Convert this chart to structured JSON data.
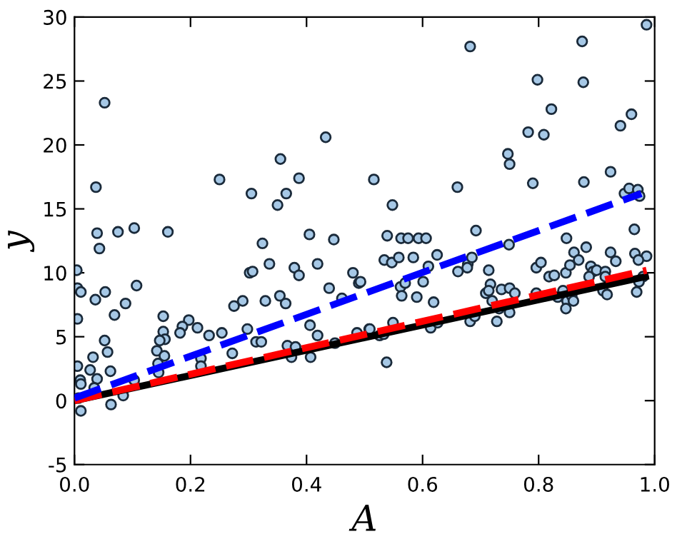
{
  "chart_data": {
    "type": "scatter",
    "xlabel": "A",
    "ylabel": "y",
    "xlim": [
      0,
      1
    ],
    "ylim": [
      -5,
      30
    ],
    "xticks": [
      {
        "value": 0,
        "label": "0.0"
      },
      {
        "value": 0.2,
        "label": "0.2"
      },
      {
        "value": 0.4,
        "label": "0.4"
      },
      {
        "value": 0.6,
        "label": "0.6"
      },
      {
        "value": 0.8,
        "label": "0.8"
      },
      {
        "value": 1,
        "label": "1.0"
      }
    ],
    "yticks": [
      -5,
      0,
      5,
      10,
      15,
      20,
      25,
      30
    ],
    "grid": false,
    "legend": false,
    "series": [
      {
        "color": "#a6c8e6",
        "marker": "circle",
        "x": [
          0.052,
          0.037,
          0.039,
          0.075,
          0.103,
          0.161,
          0.25,
          0.305,
          0.35,
          0.355,
          0.365,
          0.387,
          0.405,
          0.433,
          0.447,
          0.324,
          0.516,
          0.986,
          0.682,
          0.875,
          0.798,
          0.877,
          0.822,
          0.96,
          0.941,
          0.782,
          0.809,
          0.747,
          0.75,
          0.548,
          0.66,
          0.79,
          0.878,
          0.924,
          0.948,
          0.956,
          0.971,
          0.974,
          0.965,
          0.539,
          0.563,
          0.575,
          0.593,
          0.606,
          0.692,
          0.848,
          0.004,
          0.043,
          0.107,
          0.005,
          0.011,
          0.053,
          0.036,
          0.088,
          0.069,
          0.005,
          0.153,
          0.197,
          0.186,
          0.212,
          0.182,
          0.232,
          0.254,
          0.153,
          0.156,
          0.147,
          0.052,
          0.057,
          0.032,
          0.142,
          0.155,
          0.062,
          0.027,
          0.005,
          0.039,
          0.01,
          0.011,
          0.034,
          0.007,
          0.011,
          0.063,
          0.084,
          0.103,
          0.144,
          0.145,
          0.218,
          0.218,
          0.272,
          0.275,
          0.29,
          0.302,
          0.307,
          0.329,
          0.336,
          0.298,
          0.313,
          0.322,
          0.354,
          0.364,
          0.379,
          0.387,
          0.367,
          0.374,
          0.381,
          0.407,
          0.406,
          0.419,
          0.419,
          0.439,
          0.461,
          0.48,
          0.49,
          0.487,
          0.508,
          0.449,
          0.534,
          0.547,
          0.559,
          0.584,
          0.625,
          0.61,
          0.661,
          0.678,
          0.677,
          0.685,
          0.714,
          0.749,
          0.493,
          0.562,
          0.57,
          0.564,
          0.601,
          0.59,
          0.619,
          0.717,
          0.709,
          0.714,
          0.72,
          0.736,
          0.75,
          0.759,
          0.732,
          0.75,
          0.728,
          0.682,
          0.69,
          0.614,
          0.626,
          0.549,
          0.526,
          0.533,
          0.509,
          0.538,
          0.796,
          0.804,
          0.818,
          0.827,
          0.847,
          0.854,
          0.861,
          0.869,
          0.882,
          0.89,
          0.894,
          0.887,
          0.9,
          0.924,
          0.933,
          0.966,
          0.986,
          0.972,
          0.915,
          0.915,
          0.842,
          0.849,
          0.857,
          0.86,
          0.847,
          0.833,
          0.911,
          0.918,
          0.969,
          0.796,
          0.98,
          0.973
        ],
        "values": [
          23.3,
          16.7,
          13.1,
          13.2,
          13.5,
          13.2,
          17.3,
          16.2,
          15.3,
          18.9,
          16.2,
          17.4,
          13.0,
          20.6,
          12.6,
          12.3,
          17.3,
          29.4,
          27.7,
          28.1,
          25.1,
          24.9,
          22.8,
          22.4,
          21.5,
          21.0,
          20.8,
          19.3,
          18.5,
          15.3,
          16.7,
          17.0,
          17.1,
          17.9,
          16.2,
          16.6,
          16.5,
          16.0,
          13.4,
          12.9,
          12.7,
          12.7,
          12.7,
          12.7,
          13.3,
          12.7,
          10.2,
          11.9,
          9.0,
          8.8,
          8.5,
          8.5,
          7.9,
          7.6,
          6.7,
          6.4,
          6.6,
          6.3,
          5.8,
          5.7,
          5.3,
          5.1,
          5.3,
          5.4,
          4.8,
          4.7,
          4.7,
          3.8,
          3.4,
          3.9,
          3.5,
          2.3,
          2.4,
          2.7,
          1.7,
          1.6,
          1.3,
          1.0,
          0.2,
          -0.8,
          -0.3,
          0.4,
          1.6,
          2.9,
          2.2,
          3.3,
          2.7,
          3.7,
          7.4,
          7.8,
          10.0,
          10.1,
          7.8,
          10.7,
          5.6,
          4.6,
          4.6,
          8.2,
          7.6,
          10.4,
          9.8,
          4.3,
          3.4,
          4.2,
          3.4,
          5.9,
          5.1,
          10.7,
          8.8,
          8.0,
          10.0,
          9.2,
          5.3,
          5.6,
          4.5,
          11.0,
          10.8,
          11.2,
          11.2,
          11.4,
          10.5,
          10.1,
          10.7,
          10.4,
          11.2,
          10.2,
          12.2,
          9.3,
          8.9,
          9.2,
          8.2,
          9.3,
          8.1,
          7.7,
          9.1,
          8.4,
          8.6,
          7.8,
          8.7,
          8.8,
          8.4,
          7.2,
          6.9,
          6.2,
          6.2,
          6.6,
          5.7,
          6.1,
          6.1,
          5.1,
          5.2,
          5.6,
          3.0,
          10.4,
          10.8,
          9.7,
          9.8,
          10.0,
          10.6,
          11.6,
          11.0,
          12.0,
          10.5,
          10.1,
          9.7,
          10.2,
          11.6,
          10.9,
          11.5,
          11.3,
          11.0,
          10.1,
          9.7,
          8.6,
          7.8,
          8.2,
          7.8,
          7.2,
          8.1,
          8.6,
          8.3,
          8.5,
          8.4,
          9.7,
          9.3
        ]
      },
      {
        "type": "line",
        "color": "#000000",
        "line_style": "solid",
        "x": [
          0,
          0.984
        ],
        "values": [
          0,
          9.7
        ]
      },
      {
        "type": "line",
        "color": "#ff0000",
        "line_style": "dashed",
        "x": [
          0,
          0.986
        ],
        "values": [
          0,
          10.2
        ]
      },
      {
        "type": "line",
        "color": "#0000ff",
        "line_style": "dashed",
        "x": [
          0,
          0.977
        ],
        "values": [
          0.2,
          16.2
        ]
      }
    ]
  }
}
